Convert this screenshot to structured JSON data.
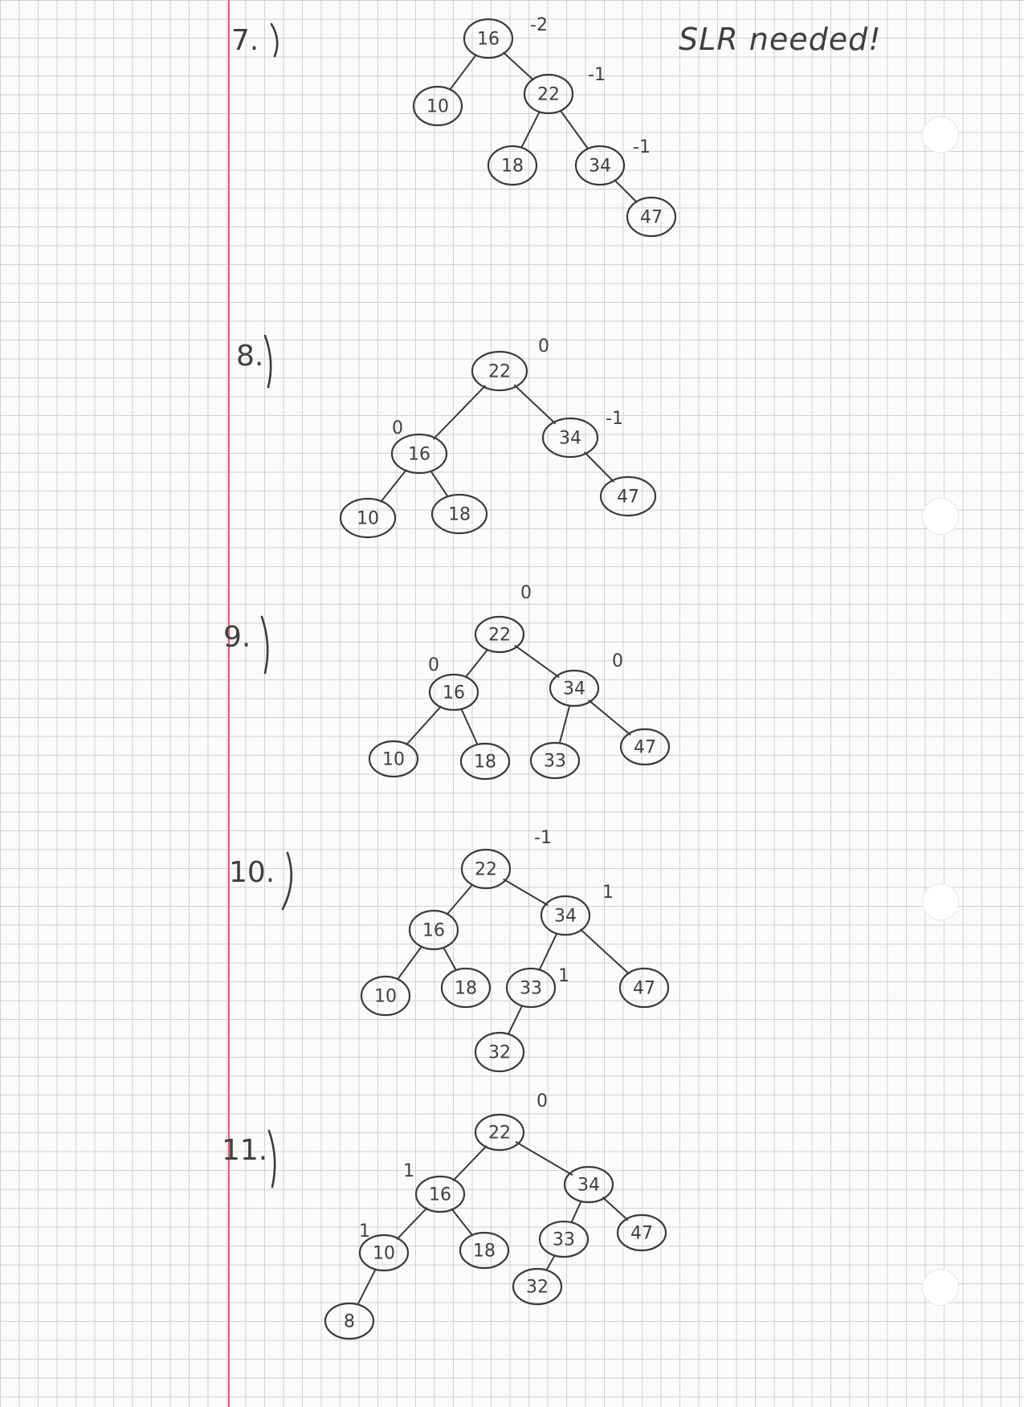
{
  "note": "SLR needed!",
  "steps": [
    {
      "label": "7.",
      "nodes": [
        {
          "id": "16",
          "text": "16",
          "bf": "-2"
        },
        {
          "id": "10",
          "text": "10"
        },
        {
          "id": "22",
          "text": "22",
          "bf": "-1"
        },
        {
          "id": "18",
          "text": "18"
        },
        {
          "id": "34",
          "text": "34",
          "bf": "-1"
        },
        {
          "id": "47",
          "text": "47"
        }
      ],
      "edges": [
        [
          "16",
          "10"
        ],
        [
          "16",
          "22"
        ],
        [
          "22",
          "18"
        ],
        [
          "22",
          "34"
        ],
        [
          "34",
          "47"
        ]
      ]
    },
    {
      "label": "8.",
      "nodes": [
        {
          "id": "22",
          "text": "22",
          "bf": "0"
        },
        {
          "id": "16",
          "text": "16",
          "bf": "0"
        },
        {
          "id": "34",
          "text": "34",
          "bf": "-1"
        },
        {
          "id": "10",
          "text": "10"
        },
        {
          "id": "18",
          "text": "18"
        },
        {
          "id": "47",
          "text": "47"
        }
      ],
      "edges": [
        [
          "22",
          "16"
        ],
        [
          "22",
          "34"
        ],
        [
          "16",
          "10"
        ],
        [
          "16",
          "18"
        ],
        [
          "34",
          "47"
        ]
      ]
    },
    {
      "label": "9.",
      "nodes": [
        {
          "id": "22",
          "text": "22",
          "bf": "0"
        },
        {
          "id": "16",
          "text": "16",
          "bf": "0"
        },
        {
          "id": "34",
          "text": "34",
          "bf": "0"
        },
        {
          "id": "10",
          "text": "10"
        },
        {
          "id": "18",
          "text": "18"
        },
        {
          "id": "33",
          "text": "33"
        },
        {
          "id": "47",
          "text": "47"
        }
      ],
      "edges": [
        [
          "22",
          "16"
        ],
        [
          "22",
          "34"
        ],
        [
          "16",
          "10"
        ],
        [
          "16",
          "18"
        ],
        [
          "34",
          "33"
        ],
        [
          "34",
          "47"
        ]
      ]
    },
    {
      "label": "10.",
      "nodes": [
        {
          "id": "22",
          "text": "22",
          "bf": "-1"
        },
        {
          "id": "16",
          "text": "16"
        },
        {
          "id": "34",
          "text": "34",
          "bf": "1"
        },
        {
          "id": "10",
          "text": "10"
        },
        {
          "id": "18",
          "text": "18"
        },
        {
          "id": "33",
          "text": "33",
          "bf": "1"
        },
        {
          "id": "47",
          "text": "47"
        },
        {
          "id": "32",
          "text": "32"
        }
      ],
      "edges": [
        [
          "22",
          "16"
        ],
        [
          "22",
          "34"
        ],
        [
          "16",
          "10"
        ],
        [
          "16",
          "18"
        ],
        [
          "34",
          "33"
        ],
        [
          "34",
          "47"
        ],
        [
          "33",
          "32"
        ]
      ]
    },
    {
      "label": "11.",
      "nodes": [
        {
          "id": "22",
          "text": "22",
          "bf": "0"
        },
        {
          "id": "16",
          "text": "16",
          "bf": "1"
        },
        {
          "id": "34",
          "text": "34"
        },
        {
          "id": "10",
          "text": "10",
          "bf": "1"
        },
        {
          "id": "18",
          "text": "18"
        },
        {
          "id": "33",
          "text": "33"
        },
        {
          "id": "47",
          "text": "47"
        },
        {
          "id": "8",
          "text": "8"
        },
        {
          "id": "32",
          "text": "32"
        }
      ],
      "edges": [
        [
          "22",
          "16"
        ],
        [
          "22",
          "34"
        ],
        [
          "16",
          "10"
        ],
        [
          "16",
          "18"
        ],
        [
          "10",
          "8"
        ],
        [
          "34",
          "33"
        ],
        [
          "34",
          "47"
        ],
        [
          "33",
          "32"
        ]
      ]
    }
  ]
}
